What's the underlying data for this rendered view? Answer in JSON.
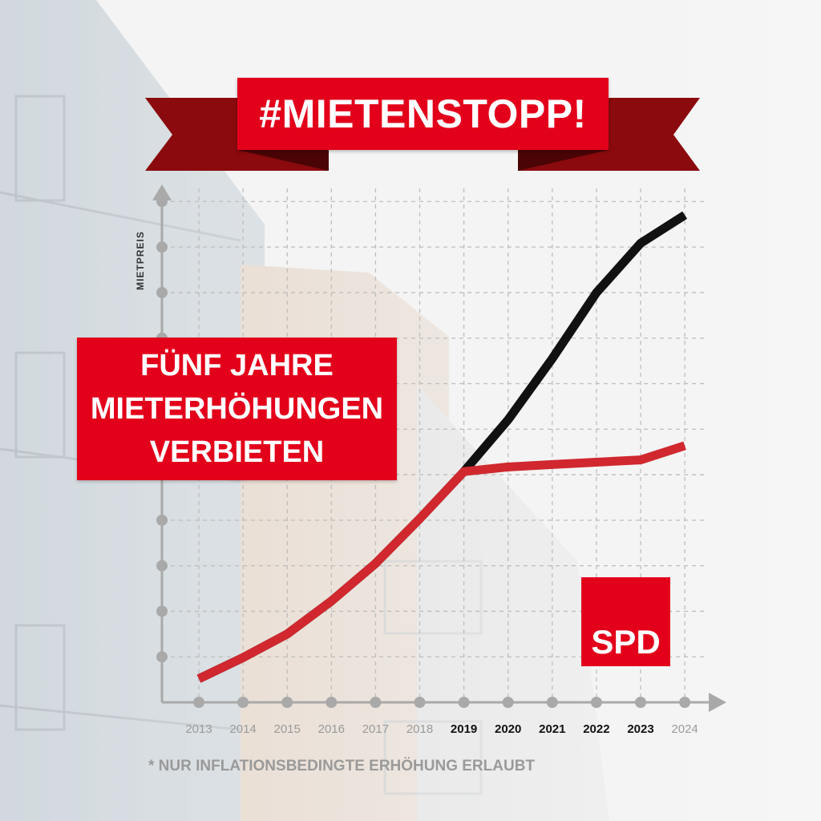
{
  "chart_data": {
    "type": "line",
    "title": "#MIETENSTOPP!",
    "ylabel": "MIETPREIS",
    "xlabel": "",
    "categories": [
      "2013",
      "2014",
      "2015",
      "2016",
      "2017",
      "2018",
      "2019",
      "2020",
      "2021",
      "2022",
      "2023",
      "2024"
    ],
    "highlighted_categories": [
      "2019",
      "2020",
      "2021",
      "2022",
      "2023"
    ],
    "series": [
      {
        "color": "#111111",
        "values": [
          1.0,
          1.9,
          2.9,
          4.3,
          5.9,
          7.8,
          9.8,
          12.0,
          14.6,
          17.4,
          19.5,
          20.7
        ]
      },
      {
        "color": "#d0282e",
        "values": [
          1.0,
          1.9,
          2.9,
          4.3,
          5.9,
          7.8,
          9.8,
          10.0,
          10.1,
          10.2,
          10.3,
          10.9
        ]
      }
    ],
    "ylim": [
      0,
      22
    ],
    "grid": true
  },
  "banner": {
    "text": "#MIETENSTOPP!"
  },
  "callout": {
    "lines": [
      "FÜNF JAHRE",
      "MIETERHÖHUNGEN",
      "VERBIETEN"
    ]
  },
  "logo": {
    "text": "SPD"
  },
  "footnote": "* NUR INFLATIONSBEDINGTE ERHÖHUNG ERLAUBT",
  "colors": {
    "accent": "#e3001b",
    "ribbon_dark": "#8a0a0d"
  }
}
